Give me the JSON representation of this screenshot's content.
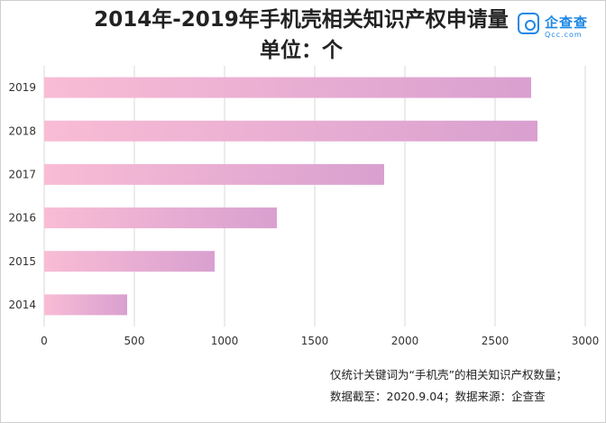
{
  "title": {
    "line1": "2014年-2019年手机壳相关知识产权申请量",
    "line2": "单位：个"
  },
  "logo": {
    "name_cn": "企查查",
    "name_en": "Qcc.com",
    "icon": "qcc-logo-icon"
  },
  "chart_data": {
    "type": "bar",
    "orientation": "horizontal",
    "categories": [
      "2019",
      "2018",
      "2017",
      "2016",
      "2015",
      "2014"
    ],
    "values": [
      2700,
      2735,
      1885,
      1290,
      945,
      460
    ],
    "xlim": [
      0,
      3000
    ],
    "xticks": [
      0,
      500,
      1000,
      1500,
      2000,
      2500,
      3000
    ],
    "grid": "vertical",
    "bar_gradient_start": "#f9bcd5",
    "bar_gradient_end": "#d9a0d0",
    "grid_color": "#d9d9d9"
  },
  "footnote": {
    "line1": "仅统计关键词为“手机壳”的相关知识产权数量；",
    "line2": "数据截至：2020.9.04；数据来源：企查查"
  }
}
